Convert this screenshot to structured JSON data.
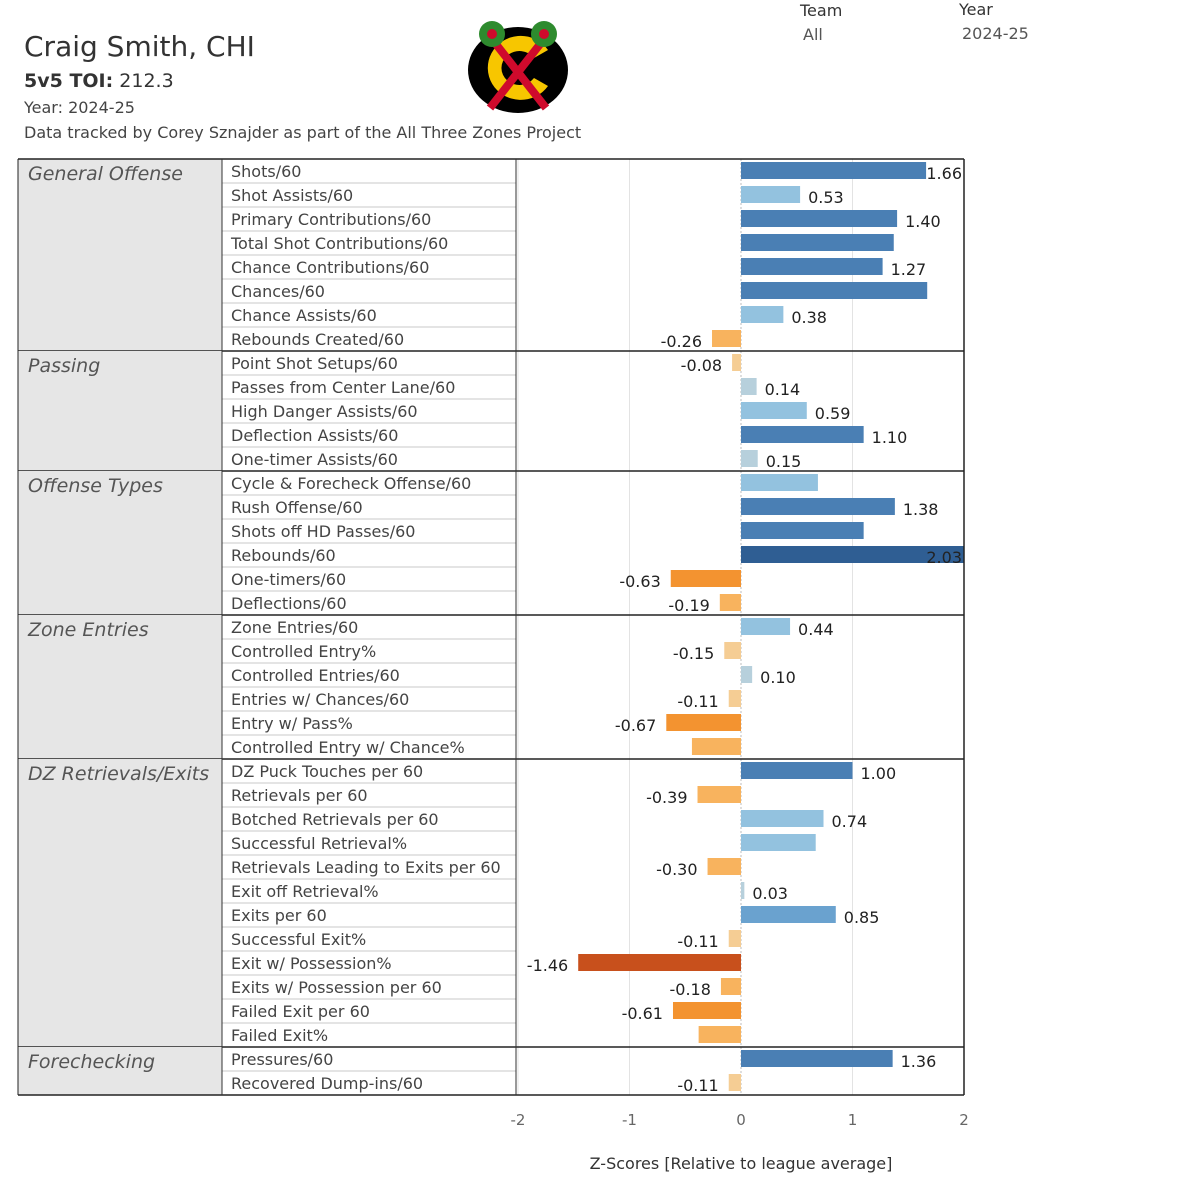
{
  "header": {
    "player": "Craig Smith, CHI",
    "toi_label": "5v5 TOI:",
    "toi_value": "212.3",
    "year_line": "Year: 2024-25",
    "credit": "Data tracked by Corey Sznajder as part of the All Three Zones Project"
  },
  "filters": {
    "team_label": "Team",
    "team_value": "All",
    "year_label": "Year",
    "year_value": "2024-25"
  },
  "logo": {
    "name": "chicago-blackhawks-logo",
    "primary": "#000000",
    "accent": "#cf0a2c",
    "secondary": "#f7c600",
    "feather": "#2e8b2e"
  },
  "colors": {
    "neg_strong": "#c8501c",
    "neg_mid": "#f39330",
    "neg_light": "#f8b35e",
    "neg_pale": "#f5cd94",
    "pos_pale": "#b7d0dc",
    "pos_light": "#93c2df",
    "pos_mid": "#6aa2cf",
    "pos_strong": "#4a7fb4",
    "pos_deep": "#2f5e93"
  },
  "chart_data": {
    "type": "bar",
    "orientation": "horizontal",
    "xlabel": "Z-Scores [Relative to league average]",
    "xlim": [
      -2,
      2
    ],
    "xticks": [
      "-2",
      "-1",
      "0",
      "1",
      "2"
    ],
    "xtick_values": [
      -2,
      -1,
      0,
      1,
      2
    ],
    "categories": [
      {
        "name": "General Offense",
        "metrics": [
          {
            "label": "Shots/60",
            "value": 1.66,
            "show_label": true
          },
          {
            "label": "Shot Assists/60",
            "value": 0.53,
            "show_label": true
          },
          {
            "label": "Primary Contributions/60",
            "value": 1.4,
            "show_label": true
          },
          {
            "label": "Total Shot Contributions/60",
            "value": 1.37,
            "show_label": false
          },
          {
            "label": "Chance Contributions/60",
            "value": 1.27,
            "show_label": true
          },
          {
            "label": "Chances/60",
            "value": 1.67,
            "show_label": false
          },
          {
            "label": "Chance Assists/60",
            "value": 0.38,
            "show_label": true
          },
          {
            "label": "Rebounds Created/60",
            "value": -0.26,
            "show_label": true
          }
        ]
      },
      {
        "name": "Passing",
        "metrics": [
          {
            "label": "Point Shot Setups/60",
            "value": -0.08,
            "show_label": true
          },
          {
            "label": "Passes from Center Lane/60",
            "value": 0.14,
            "show_label": true
          },
          {
            "label": "High Danger Assists/60",
            "value": 0.59,
            "show_label": true
          },
          {
            "label": "Deflection Assists/60",
            "value": 1.1,
            "show_label": true
          },
          {
            "label": "One-timer Assists/60",
            "value": 0.15,
            "show_label": true
          }
        ]
      },
      {
        "name": "Offense Types",
        "metrics": [
          {
            "label": "Cycle & Forecheck Offense/60",
            "value": 0.69,
            "show_label": false
          },
          {
            "label": "Rush Offense/60",
            "value": 1.38,
            "show_label": true
          },
          {
            "label": "Shots off HD Passes/60",
            "value": 1.1,
            "show_label": false
          },
          {
            "label": "Rebounds/60",
            "value": 2.03,
            "show_label": true
          },
          {
            "label": "One-timers/60",
            "value": -0.63,
            "show_label": true
          },
          {
            "label": "Deflections/60",
            "value": -0.19,
            "show_label": true
          }
        ]
      },
      {
        "name": "Zone Entries",
        "metrics": [
          {
            "label": "Zone Entries/60",
            "value": 0.44,
            "show_label": true
          },
          {
            "label": "Controlled Entry%",
            "value": -0.15,
            "show_label": true
          },
          {
            "label": "Controlled Entries/60",
            "value": 0.1,
            "show_label": true
          },
          {
            "label": "Entries w/ Chances/60",
            "value": -0.11,
            "show_label": true
          },
          {
            "label": "Entry w/ Pass%",
            "value": -0.67,
            "show_label": true
          },
          {
            "label": "Controlled Entry w/ Chance%",
            "value": -0.44,
            "show_label": false
          }
        ]
      },
      {
        "name": "DZ Retrievals/Exits",
        "metrics": [
          {
            "label": "DZ Puck Touches per 60",
            "value": 1.0,
            "show_label": true
          },
          {
            "label": "Retrievals per 60",
            "value": -0.39,
            "show_label": true
          },
          {
            "label": "Botched Retrievals per 60",
            "value": 0.74,
            "show_label": true
          },
          {
            "label": "Successful Retrieval%",
            "value": 0.67,
            "show_label": false
          },
          {
            "label": "Retrievals Leading to Exits per 60",
            "value": -0.3,
            "show_label": true
          },
          {
            "label": "Exit off Retrieval%",
            "value": 0.03,
            "show_label": true
          },
          {
            "label": "Exits per 60",
            "value": 0.85,
            "show_label": true
          },
          {
            "label": "Successful Exit%",
            "value": -0.11,
            "show_label": true
          },
          {
            "label": "Exit w/ Possession%",
            "value": -1.46,
            "show_label": true
          },
          {
            "label": "Exits w/ Possession per 60",
            "value": -0.18,
            "show_label": true
          },
          {
            "label": "Failed Exit per 60",
            "value": -0.61,
            "show_label": true
          },
          {
            "label": "Failed Exit%",
            "value": -0.38,
            "show_label": false
          }
        ]
      },
      {
        "name": "Forechecking",
        "metrics": [
          {
            "label": "Pressures/60",
            "value": 1.36,
            "show_label": true
          },
          {
            "label": "Recovered Dump-ins/60",
            "value": -0.11,
            "show_label": true
          }
        ]
      }
    ]
  }
}
